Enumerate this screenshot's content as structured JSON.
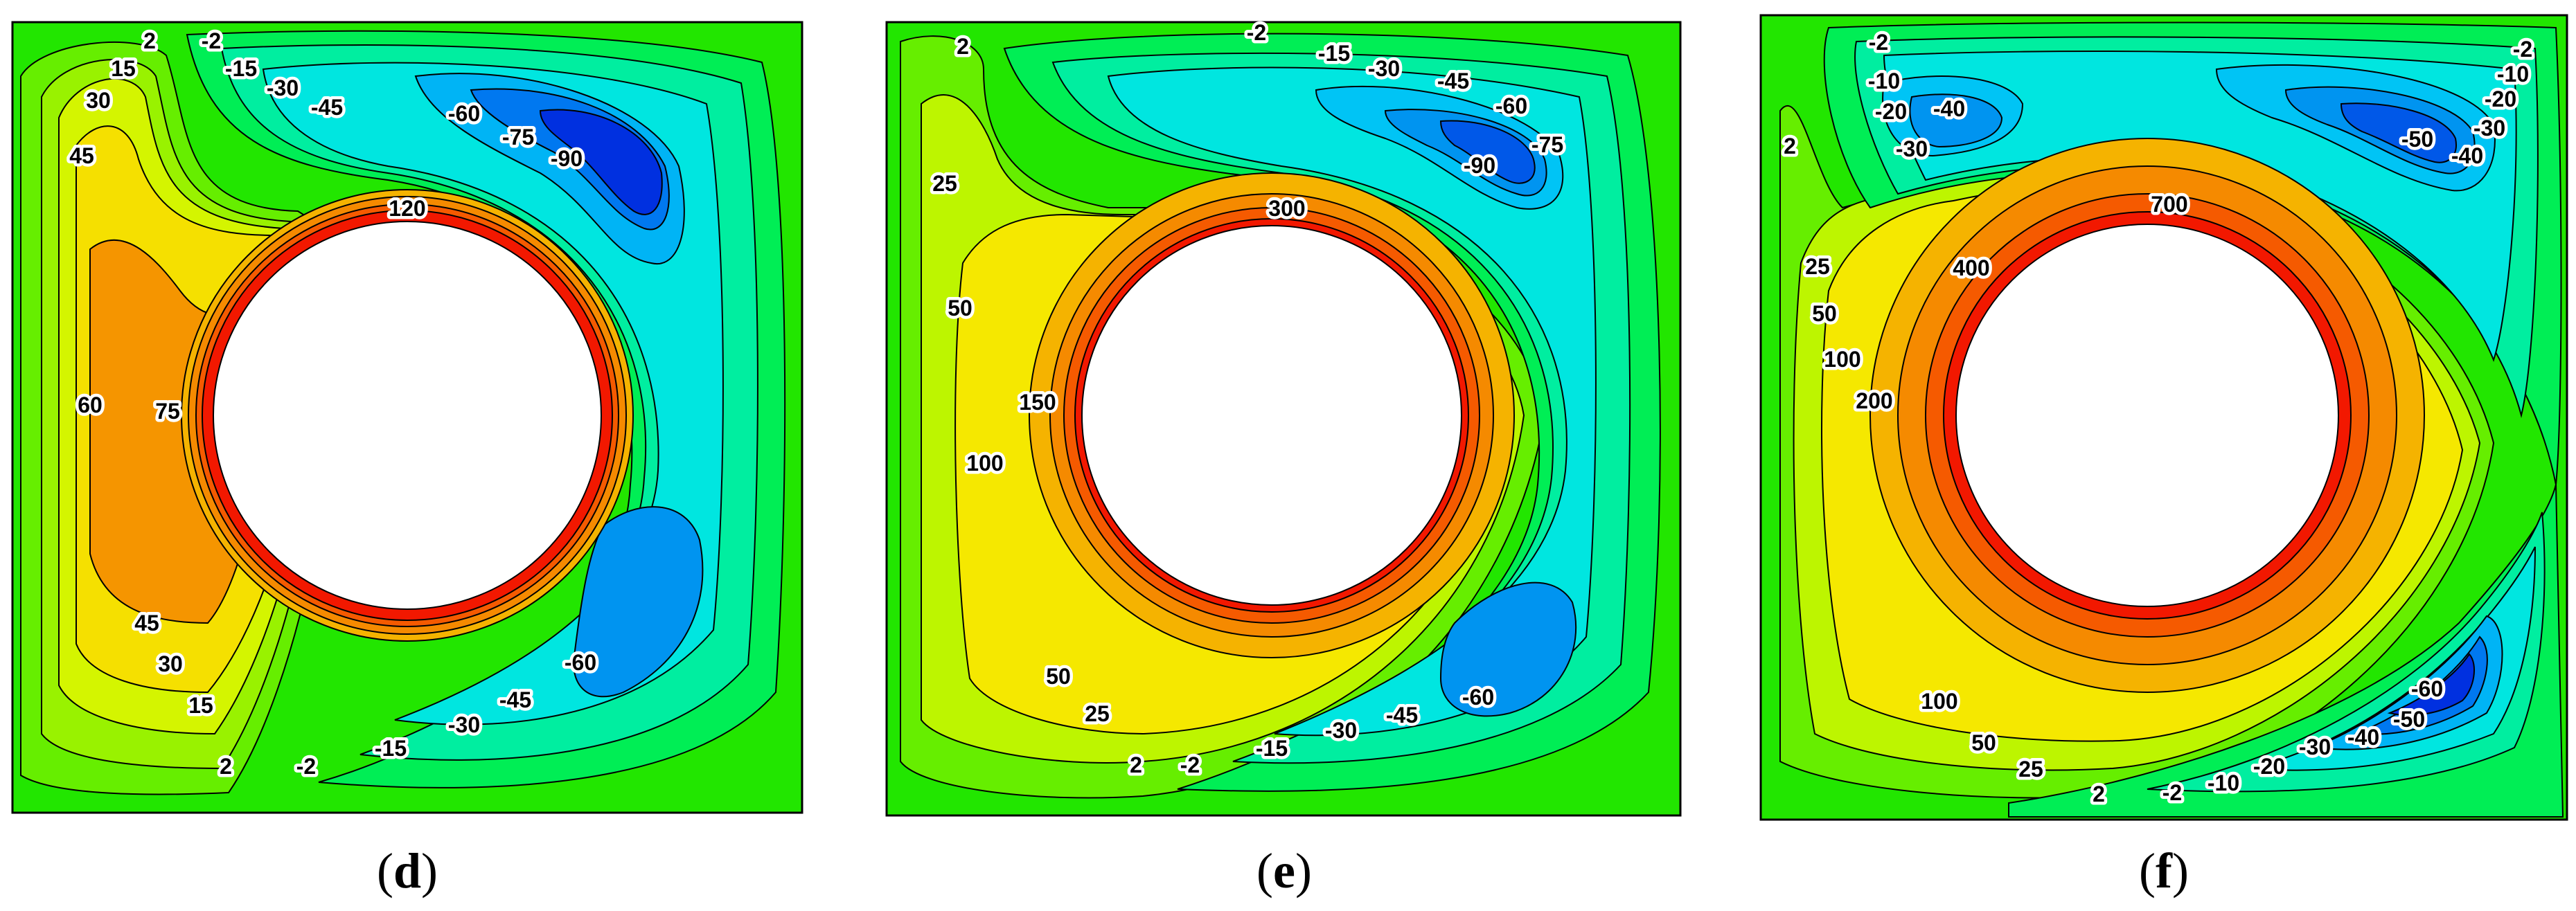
{
  "colors": {
    "background_green": "#22e600",
    "contour_line": "#000000",
    "positive_ramp": [
      "#22e600",
      "#66ee00",
      "#bdf500",
      "#f5e800",
      "#f5b300",
      "#f58a00",
      "#f55a00",
      "#f21800"
    ],
    "negative_ramp": [
      "#22e600",
      "#00ee55",
      "#00eea0",
      "#00e6e0",
      "#00c4f5",
      "#0094f0",
      "#0058e8",
      "#0018d8"
    ],
    "hole": "#ffffff"
  },
  "panels": [
    {
      "caption_open": "(",
      "caption_letter": "d",
      "caption_close": ")",
      "labels": [
        "2",
        "-2",
        "15",
        "-15",
        "-30",
        "30",
        "-45",
        "45",
        "-60",
        "-75",
        "-90",
        "120",
        "60",
        "75",
        "45",
        "30",
        "15",
        "2",
        "-2",
        "-15",
        "-30",
        "-45",
        "-60"
      ]
    },
    {
      "caption_open": "(",
      "caption_letter": "e",
      "caption_close": ")",
      "labels": [
        "-2",
        "2",
        "-15",
        "-30",
        "-45",
        "-60",
        "-75",
        "-90",
        "25",
        "300",
        "50",
        "150",
        "100",
        "50",
        "25",
        "2",
        "-2",
        "-15",
        "-30",
        "-45",
        "-60"
      ]
    },
    {
      "caption_open": "(",
      "caption_letter": "f",
      "caption_close": ")",
      "labels": [
        "-2",
        "-2",
        "-10",
        "-10",
        "-20",
        "-40",
        "-20",
        "-30",
        "2",
        "-30",
        "-50",
        "-40",
        "700",
        "25",
        "400",
        "50",
        "100",
        "200",
        "100",
        "50",
        "25",
        "2",
        "-2",
        "-10",
        "-20",
        "-30",
        "-40",
        "-50",
        "-60"
      ]
    }
  ]
}
